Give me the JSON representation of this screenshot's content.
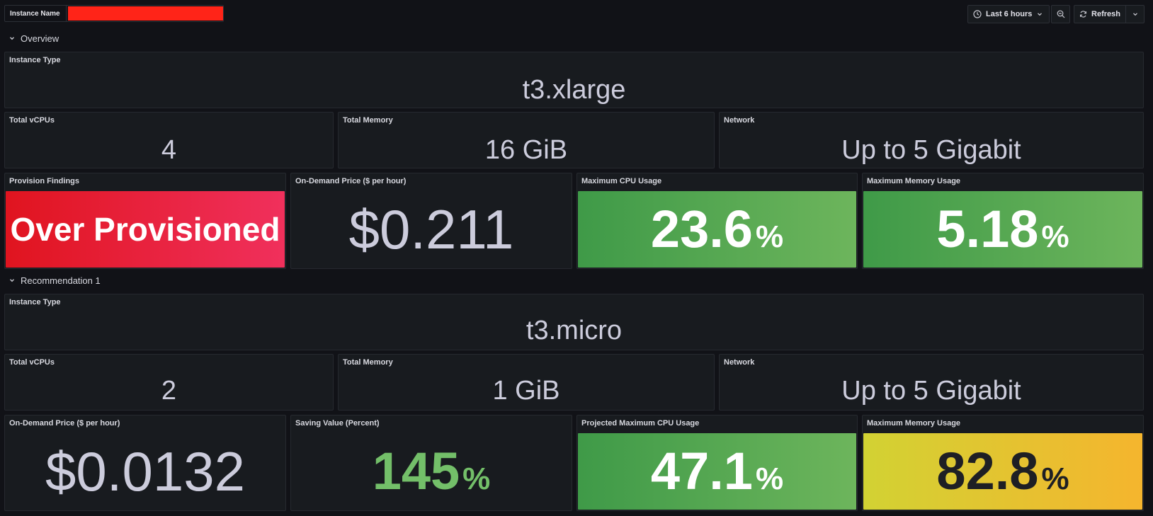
{
  "topbar": {
    "variable_label": "Instance Name",
    "time_range": "Last 6 hours",
    "refresh_label": "Refresh"
  },
  "sections": {
    "overview": "Overview",
    "recommendation": "Recommendation 1"
  },
  "overview": {
    "instance_type_title": "Instance Type",
    "instance_type": "t3.xlarge",
    "vcpus_title": "Total vCPUs",
    "vcpus": "4",
    "memory_title": "Total Memory",
    "memory": "16 GiB",
    "network_title": "Network",
    "network": "Up to 5 Gigabit",
    "findings_title": "Provision Findings",
    "findings": "Over Provisioned",
    "price_title": "On-Demand Price ($ per hour)",
    "price": "$0.211",
    "cpu_title": "Maximum CPU Usage",
    "cpu": "23.6",
    "cpu_unit": "%",
    "mem_usage_title": "Maximum Memory Usage",
    "mem_usage": "5.18",
    "mem_usage_unit": "%"
  },
  "recommendation": {
    "instance_type_title": "Instance Type",
    "instance_type": "t3.micro",
    "vcpus_title": "Total vCPUs",
    "vcpus": "2",
    "memory_title": "Total Memory",
    "memory": "1 GiB",
    "network_title": "Network",
    "network": "Up to 5 Gigabit",
    "price_title": "On-Demand Price ($ per hour)",
    "price": "$0.0132",
    "saving_title": "Saving Value (Percent)",
    "saving": "145",
    "saving_unit": "%",
    "cpu_title": "Projected Maximum CPU Usage",
    "cpu": "47.1",
    "cpu_unit": "%",
    "mem_usage_title": "Maximum Memory Usage",
    "mem_usage": "82.8",
    "mem_usage_unit": "%"
  },
  "colors": {
    "background": "#111217",
    "panel": "#181b1f",
    "red_gradient": [
      "#e0141f",
      "#f0305c"
    ],
    "green_gradient": [
      "#3f9a48",
      "#6db55c"
    ],
    "yellow_gradient": [
      "#d2d233",
      "#f5b52e"
    ],
    "green_text": "#73bf69",
    "redacted": "#ff2418"
  }
}
